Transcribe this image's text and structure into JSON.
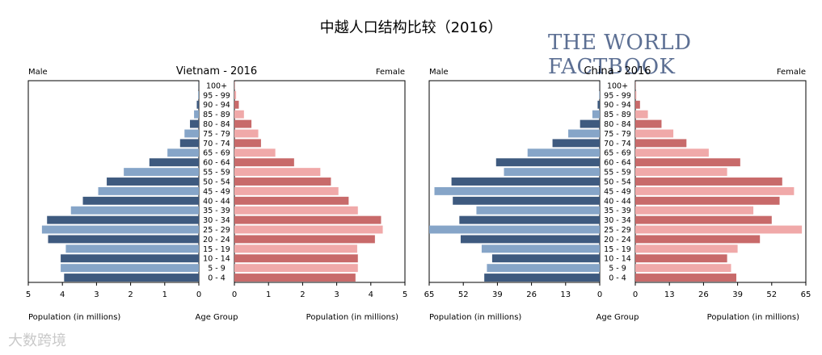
{
  "title": "中越人口结构比较（2016）",
  "branding": "THE WORLD FACTBOOK",
  "watermark": "大数跨境",
  "colors": {
    "male_dark": "#3e5a7f",
    "male_light": "#86a5c8",
    "female_dark": "#c86a6a",
    "female_light": "#f0a9a9"
  },
  "chart_data": [
    {
      "type": "bar",
      "title": "Vietnam - 2016",
      "male_label": "Male",
      "female_label": "Female",
      "center_label": "Age Group",
      "xlabel_left": "Population (in millions)",
      "xlabel_right": "Population (in millions)",
      "xlim": [
        0,
        5
      ],
      "ticks": [
        "5",
        "4",
        "3",
        "2",
        "1",
        "0",
        "0",
        "1",
        "2",
        "3",
        "4",
        "5"
      ],
      "tick_values": [
        5,
        4,
        3,
        2,
        1,
        0,
        0,
        1,
        2,
        3,
        4,
        5
      ],
      "categories": [
        "100+",
        "95 - 99",
        "90 - 94",
        "85 - 89",
        "80 - 84",
        "75 - 79",
        "70 - 74",
        "65 - 69",
        "60 - 64",
        "55 - 59",
        "50 - 54",
        "45 - 49",
        "40 - 44",
        "35 - 39",
        "30 - 34",
        "25 - 29",
        "20 - 24",
        "15 - 19",
        "10 - 14",
        "5 - 9",
        "0 - 4"
      ],
      "series": [
        {
          "name": "Male",
          "values": [
            0.005,
            0.02,
            0.06,
            0.14,
            0.26,
            0.42,
            0.55,
            0.92,
            1.45,
            2.2,
            2.7,
            2.95,
            3.4,
            3.75,
            4.45,
            4.6,
            4.42,
            3.9,
            4.05,
            4.05,
            3.95
          ]
        },
        {
          "name": "Female",
          "values": [
            0.01,
            0.05,
            0.13,
            0.28,
            0.5,
            0.7,
            0.78,
            1.2,
            1.75,
            2.52,
            2.83,
            3.05,
            3.35,
            3.62,
            4.3,
            4.35,
            4.12,
            3.6,
            3.62,
            3.62,
            3.55
          ]
        }
      ]
    },
    {
      "type": "bar",
      "title": "China - 2016",
      "male_label": "Male",
      "female_label": "Female",
      "center_label": "Age Group",
      "xlabel_left": "Population (in millions)",
      "xlabel_right": "Population (in millions)",
      "xlim": [
        0,
        65
      ],
      "ticks": [
        "65",
        "52",
        "39",
        "26",
        "13",
        "0",
        "0",
        "13",
        "26",
        "39",
        "52",
        "65"
      ],
      "tick_values": [
        65,
        52,
        39,
        26,
        13,
        0,
        0,
        13,
        26,
        39,
        52,
        65
      ],
      "categories": [
        "100+",
        "95 - 99",
        "90 - 94",
        "85 - 89",
        "80 - 84",
        "75 - 79",
        "70 - 74",
        "65 - 69",
        "60 - 64",
        "55 - 59",
        "50 - 54",
        "45 - 49",
        "40 - 44",
        "35 - 39",
        "30 - 34",
        "25 - 29",
        "20 - 24",
        "15 - 19",
        "10 - 14",
        "5 - 9",
        "0 - 4"
      ],
      "series": [
        {
          "name": "Male",
          "values": [
            0.05,
            0.2,
            0.8,
            2.8,
            7.5,
            12,
            18,
            27.5,
            39.5,
            36.5,
            56.5,
            63,
            56,
            47,
            53.5,
            65,
            53,
            45,
            41,
            43,
            44
          ]
        },
        {
          "name": "Female",
          "values": [
            0.1,
            0.4,
            1.8,
            4.8,
            10,
            14.5,
            19.5,
            28,
            40,
            35,
            56,
            60.5,
            55,
            45,
            52,
            63.5,
            47.5,
            39,
            35,
            36.5,
            38.5
          ]
        }
      ]
    }
  ]
}
